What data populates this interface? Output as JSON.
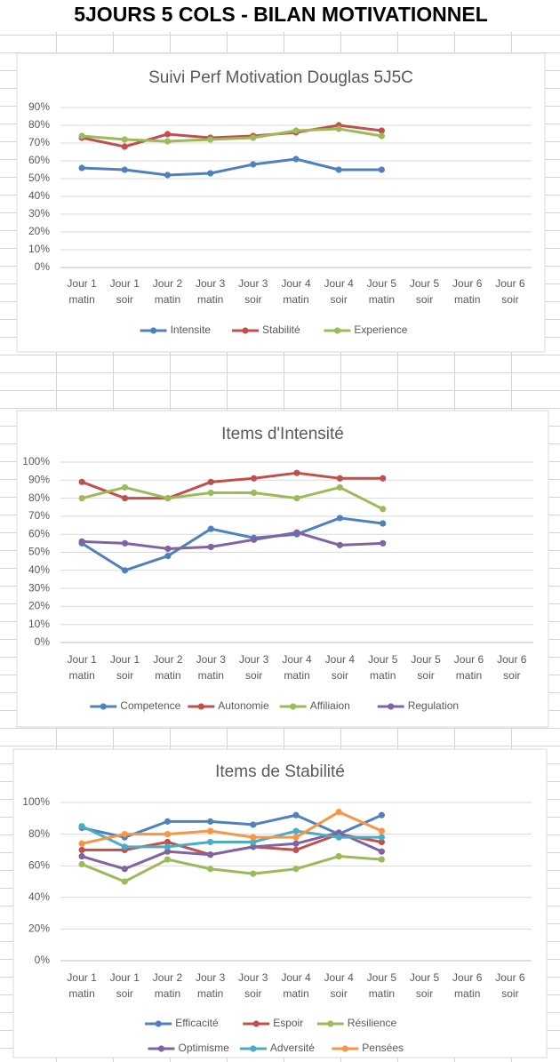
{
  "header": {
    "title": "5JOURS 5 COLS - BILAN MOTIVATIONNEL"
  },
  "chart_data": [
    {
      "type": "line",
      "title": "Suivi Perf Motivation Douglas 5J5C",
      "categories": [
        "Jour 1 matin",
        "Jour 1 soir",
        "Jour 2 matin",
        "Jour 3 matin",
        "Jour 3 soir",
        "Jour 4 matin",
        "Jour 4 soir",
        "Jour 5 matin",
        "Jour 5 soir",
        "Jour 6 matin",
        "Jour 6 soir"
      ],
      "series": [
        {
          "name": "Intensite",
          "color": "#4f81bd",
          "values": [
            56,
            55,
            52,
            53,
            58,
            61,
            55,
            55,
            null,
            null,
            null
          ]
        },
        {
          "name": "Stabilité",
          "color": "#c0504d",
          "values": [
            73,
            68,
            75,
            73,
            74,
            76,
            80,
            77,
            null,
            null,
            null
          ]
        },
        {
          "name": "Experience",
          "color": "#9bbb59",
          "values": [
            74,
            72,
            71,
            72,
            73,
            77,
            78,
            74,
            null,
            null,
            null
          ]
        }
      ],
      "ylim": [
        0,
        90
      ],
      "yticks": [
        {
          "value": 0,
          "label": "0%"
        },
        {
          "value": 10,
          "label": "10%"
        },
        {
          "value": 20,
          "label": "20%"
        },
        {
          "value": 30,
          "label": "30%"
        },
        {
          "value": 40,
          "label": "40%"
        },
        {
          "value": 50,
          "label": "50%"
        },
        {
          "value": 60,
          "label": "60%"
        },
        {
          "value": 70,
          "label": "70%"
        },
        {
          "value": 80,
          "label": "80%"
        },
        {
          "value": 90,
          "label": "90%"
        }
      ],
      "grid": true,
      "legend": "bottom"
    },
    {
      "type": "line",
      "title": "Items d'Intensité",
      "categories": [
        "Jour 1 matin",
        "Jour 1 soir",
        "Jour 2 matin",
        "Jour 3 matin",
        "Jour 3 soir",
        "Jour 4 matin",
        "Jour 4 soir",
        "Jour 5 matin",
        "Jour 5 soir",
        "Jour 6 matin",
        "Jour 6 soir"
      ],
      "series": [
        {
          "name": "Competence",
          "color": "#4f81bd",
          "values": [
            55,
            40,
            48,
            63,
            58,
            60,
            69,
            66,
            null,
            null,
            null
          ]
        },
        {
          "name": "Autonomie",
          "color": "#c0504d",
          "values": [
            89,
            80,
            80,
            89,
            91,
            94,
            91,
            91,
            null,
            null,
            null
          ]
        },
        {
          "name": "Affiliaion",
          "color": "#9bbb59",
          "values": [
            80,
            86,
            80,
            83,
            83,
            80,
            86,
            74,
            null,
            null,
            null
          ]
        },
        {
          "name": "Regulation",
          "color": "#8064a2",
          "values": [
            56,
            55,
            52,
            53,
            57,
            61,
            54,
            55,
            null,
            null,
            null
          ]
        }
      ],
      "ylim": [
        0,
        100
      ],
      "yticks": [
        {
          "value": 0,
          "label": "0%"
        },
        {
          "value": 10,
          "label": "10%"
        },
        {
          "value": 20,
          "label": "20%"
        },
        {
          "value": 30,
          "label": "30%"
        },
        {
          "value": 40,
          "label": "40%"
        },
        {
          "value": 50,
          "label": "50%"
        },
        {
          "value": 60,
          "label": "60%"
        },
        {
          "value": 70,
          "label": "70%"
        },
        {
          "value": 80,
          "label": "80%"
        },
        {
          "value": 90,
          "label": "90%"
        },
        {
          "value": 100,
          "label": "100%"
        }
      ],
      "grid": true,
      "legend": "bottom"
    },
    {
      "type": "line",
      "title": "Items de Stabilité",
      "categories": [
        "Jour 1 matin",
        "Jour 1 soir",
        "Jour 2 matin",
        "Jour 3 matin",
        "Jour 3 soir",
        "Jour 4 matin",
        "Jour 4 soir",
        "Jour 5 matin",
        "Jour 5 soir",
        "Jour 6 matin",
        "Jour 6 soir"
      ],
      "series": [
        {
          "name": "Efficacité",
          "color": "#4f81bd",
          "values": [
            84,
            78,
            88,
            88,
            86,
            92,
            80,
            92,
            null,
            null,
            null
          ]
        },
        {
          "name": "Espoir",
          "color": "#c0504d",
          "values": [
            70,
            70,
            75,
            67,
            72,
            70,
            80,
            75,
            null,
            null,
            null
          ]
        },
        {
          "name": "Résilience",
          "color": "#9bbb59",
          "values": [
            61,
            50,
            64,
            58,
            55,
            58,
            66,
            64,
            null,
            null,
            null
          ]
        },
        {
          "name": "Optimisme",
          "color": "#8064a2",
          "values": [
            66,
            58,
            69,
            67,
            72,
            74,
            81,
            69,
            null,
            null,
            null
          ]
        },
        {
          "name": "Adversité",
          "color": "#4bacc6",
          "values": [
            85,
            72,
            72,
            75,
            75,
            82,
            78,
            78,
            null,
            null,
            null
          ]
        },
        {
          "name": "Pensées",
          "color": "#f79646",
          "values": [
            74,
            80,
            80,
            82,
            78,
            78,
            94,
            82,
            null,
            null,
            null
          ]
        }
      ],
      "ylim": [
        0,
        100
      ],
      "yticks": [
        {
          "value": 0,
          "label": "0%"
        },
        {
          "value": 20,
          "label": "20%"
        },
        {
          "value": 40,
          "label": "40%"
        },
        {
          "value": 60,
          "label": "60%"
        },
        {
          "value": 80,
          "label": "80%"
        },
        {
          "value": 100,
          "label": "100%"
        }
      ],
      "grid": true,
      "legend": "bottom"
    }
  ]
}
